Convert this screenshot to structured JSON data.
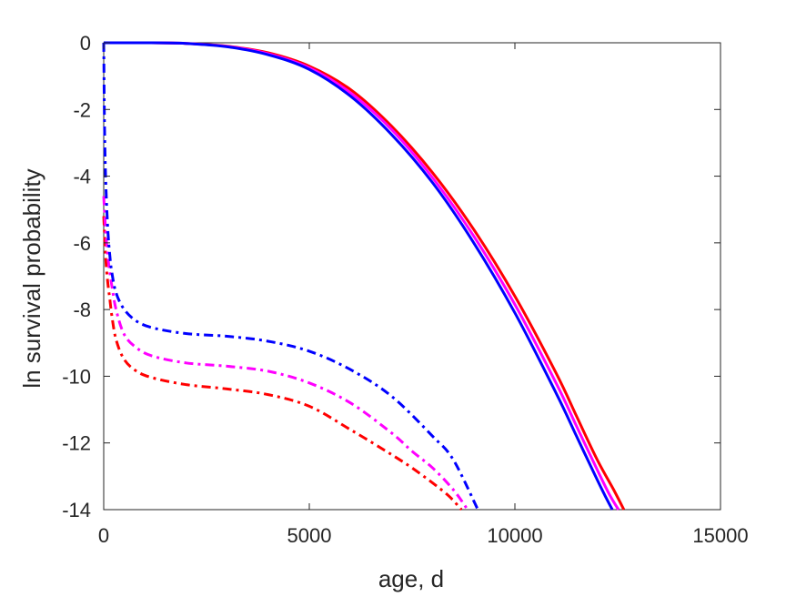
{
  "chart_data": {
    "type": "line",
    "title": "",
    "xlabel": "age, d",
    "ylabel": "ln survival probability",
    "xlim": [
      0,
      15000
    ],
    "ylim": [
      -14,
      0
    ],
    "xticks": [
      0,
      5000,
      10000,
      15000
    ],
    "yticks": [
      0,
      -2,
      -4,
      -6,
      -8,
      -10,
      -12,
      -14
    ],
    "grid": false,
    "legend": "none",
    "series": [
      {
        "color": "#ff0000",
        "style": "solid",
        "x": [
          0,
          1000,
          2000,
          3000,
          4000,
          5000,
          6000,
          7000,
          8000,
          9000,
          10000,
          11000,
          11500,
          12000,
          12400,
          12650
        ],
        "y": [
          0,
          0,
          -0.02,
          -0.1,
          -0.3,
          -0.7,
          -1.4,
          -2.5,
          -3.9,
          -5.6,
          -7.6,
          -9.9,
          -11.2,
          -12.5,
          -13.4,
          -14
        ]
      },
      {
        "color": "#ff00ff",
        "style": "solid",
        "x": [
          0,
          1000,
          2000,
          3000,
          4000,
          5000,
          6000,
          7000,
          8000,
          9000,
          10000,
          11000,
          11500,
          12000,
          12300,
          12520
        ],
        "y": [
          0,
          0,
          -0.02,
          -0.11,
          -0.33,
          -0.75,
          -1.5,
          -2.6,
          -4.05,
          -5.8,
          -7.85,
          -10.2,
          -11.5,
          -12.8,
          -13.55,
          -14
        ]
      },
      {
        "color": "#0000ff",
        "style": "solid",
        "x": [
          0,
          1000,
          2000,
          3000,
          4000,
          5000,
          6000,
          7000,
          8000,
          9000,
          10000,
          11000,
          11500,
          12000,
          12200,
          12370
        ],
        "y": [
          0,
          0,
          -0.02,
          -0.12,
          -0.36,
          -0.8,
          -1.6,
          -2.75,
          -4.2,
          -6.0,
          -8.1,
          -10.5,
          -11.8,
          -13.1,
          -13.6,
          -14
        ]
      },
      {
        "color": "#ff0000",
        "style": "dashdot",
        "x": [
          0,
          50,
          100,
          150,
          200,
          300,
          500,
          800,
          1200,
          2000,
          3000,
          4000,
          5000,
          6000,
          7000,
          7500,
          8000,
          8400,
          8700
        ],
        "y": [
          -5.2,
          -6.5,
          -7.2,
          -7.7,
          -8.2,
          -8.9,
          -9.5,
          -9.85,
          -10.05,
          -10.25,
          -10.38,
          -10.55,
          -10.9,
          -11.6,
          -12.35,
          -12.75,
          -13.2,
          -13.6,
          -14
        ]
      },
      {
        "color": "#ff00ff",
        "style": "dashdot",
        "x": [
          0,
          50,
          100,
          150,
          200,
          300,
          500,
          800,
          1200,
          2000,
          3000,
          4000,
          5000,
          6000,
          7000,
          7500,
          8000,
          8500,
          8850
        ],
        "y": [
          -4.6,
          -5.7,
          -6.4,
          -6.9,
          -7.3,
          -8.0,
          -8.75,
          -9.15,
          -9.4,
          -9.6,
          -9.7,
          -9.85,
          -10.2,
          -10.8,
          -11.7,
          -12.25,
          -12.75,
          -13.4,
          -14
        ]
      },
      {
        "color": "#0000ff",
        "style": "dashdot",
        "x": [
          0,
          20,
          50,
          100,
          150,
          200,
          300,
          500,
          800,
          1200,
          2000,
          3000,
          4000,
          5000,
          6000,
          7000,
          8000,
          8500,
          9100
        ],
        "y": [
          0,
          -2.5,
          -4.2,
          -5.6,
          -6.4,
          -6.9,
          -7.5,
          -8.0,
          -8.35,
          -8.55,
          -8.72,
          -8.8,
          -8.95,
          -9.25,
          -9.8,
          -10.6,
          -11.8,
          -12.5,
          -14
        ]
      }
    ]
  }
}
